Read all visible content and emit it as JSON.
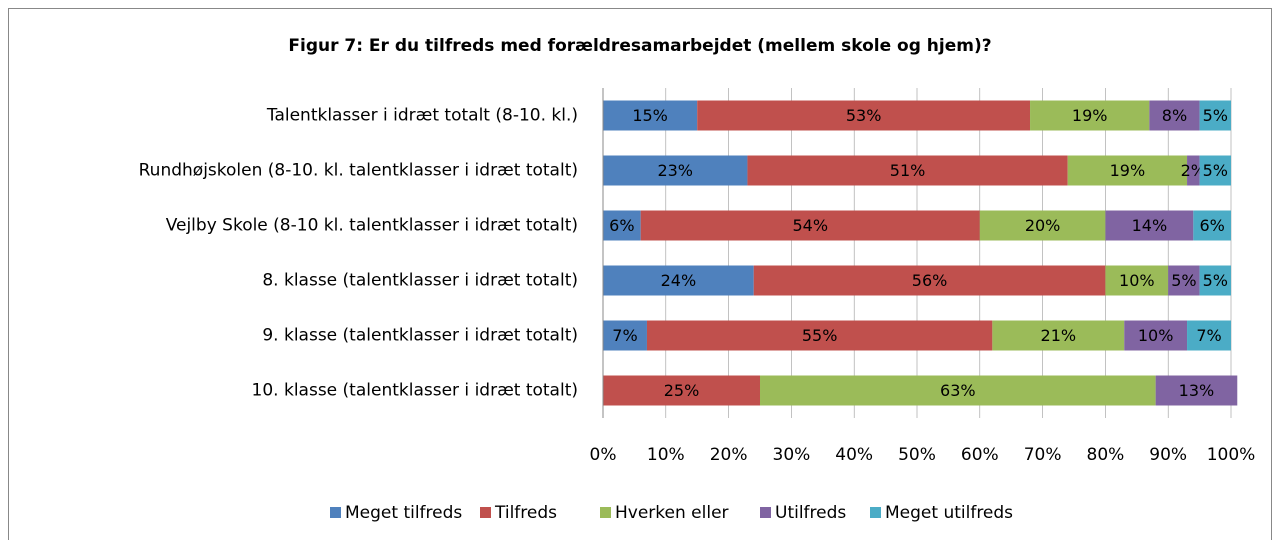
{
  "chart_data": {
    "type": "stacked_barh",
    "title": "Figur 7: Er du tilfreds med forældresamarbejdet (mellem skole og hjem)?",
    "categories": [
      "Talentklasser i idræt totalt (8-10. kl.)",
      "Rundhøjskolen (8-10. kl. talentklasser i idræt totalt)",
      "Vejlby Skole (8-10 kl. talentklasser i idræt totalt)",
      "8. klasse (talentklasser i idræt totalt)",
      "9. klasse (talentklasser i idræt totalt)",
      "10. klasse (talentklasser i idræt totalt)"
    ],
    "series": [
      {
        "name": "Meget tilfreds",
        "color": "#4f81bd",
        "values": [
          15,
          23,
          6,
          24,
          7,
          null
        ],
        "value_labels": [
          "15%",
          "23%",
          "6%",
          "24%",
          "7%",
          null
        ]
      },
      {
        "name": "Tilfreds",
        "color": "#c0504d",
        "values": [
          53,
          51,
          54,
          56,
          55,
          25
        ],
        "value_labels": [
          "53%",
          "51%",
          "54%",
          "56%",
          "55%",
          "25%"
        ]
      },
      {
        "name": "Hverken eller",
        "color": "#9bbb59",
        "values": [
          19,
          19,
          20,
          10,
          21,
          63
        ],
        "value_labels": [
          "19%",
          "19%",
          "20%",
          "10%",
          "21%",
          "63%"
        ]
      },
      {
        "name": "Utilfreds",
        "color": "#8064a2",
        "values": [
          8,
          2,
          14,
          5,
          10,
          13
        ],
        "value_labels": [
          "8%",
          "2%",
          "14%",
          "5%",
          "10%",
          "13%"
        ]
      },
      {
        "name": "Meget utilfreds",
        "color": "#4bacc6",
        "values": [
          5,
          5,
          6,
          5,
          7,
          null
        ],
        "value_labels": [
          "5%",
          "5%",
          "6%",
          "5%",
          "7%",
          null
        ]
      }
    ],
    "xlim": [
      0,
      100
    ],
    "xticks": [
      {
        "value": 0,
        "label": "0%"
      },
      {
        "value": 10,
        "label": "10%"
      },
      {
        "value": 20,
        "label": "20%"
      },
      {
        "value": 30,
        "label": "30%"
      },
      {
        "value": 40,
        "label": "40%"
      },
      {
        "value": 50,
        "label": "50%"
      },
      {
        "value": 60,
        "label": "60%"
      },
      {
        "value": 70,
        "label": "70%"
      },
      {
        "value": 80,
        "label": "80%"
      },
      {
        "value": 90,
        "label": "90%"
      },
      {
        "value": 100,
        "label": "100%"
      }
    ],
    "legend": "bottom"
  }
}
